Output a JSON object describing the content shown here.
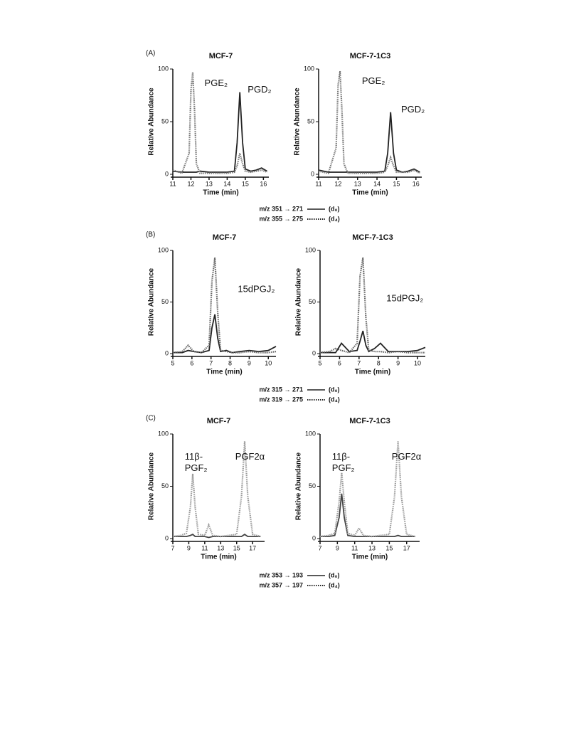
{
  "panels": [
    {
      "label": "(A)",
      "legend": [
        {
          "text": "m/z 351 → 271",
          "tag": "(d₀)",
          "style": "solid"
        },
        {
          "text": "m/z 355 → 275",
          "tag": "(d₄)",
          "style": "dotted"
        }
      ]
    },
    {
      "label": "(B)",
      "legend": [
        {
          "text": "m/z 315 → 271",
          "tag": "(d₀)",
          "style": "solid"
        },
        {
          "text": "m/z 319 → 275",
          "tag": "(d₄)",
          "style": "dotted"
        }
      ]
    },
    {
      "label": "(C)",
      "legend": [
        {
          "text": "m/z 353 → 193",
          "tag": "(d₀)",
          "style": "solid"
        },
        {
          "text": "m/z 357 → 197",
          "tag": "(d₄)",
          "style": "dotted"
        }
      ]
    }
  ],
  "chart_data": [
    {
      "type": "line",
      "title": "MCF-7",
      "x_label": "Time (min)",
      "y_label": "Relative Abundance",
      "xlim": [
        11,
        16.3
      ],
      "xticks": [
        11,
        12,
        13,
        14,
        15,
        16
      ],
      "ylim": [
        0,
        100
      ],
      "yticks": [
        0,
        50,
        100
      ],
      "annotations": [
        "PGE₂",
        "PGD₂"
      ],
      "x": [
        11,
        11.5,
        11.9,
        12.0,
        12.1,
        12.2,
        12.3,
        12.5,
        13,
        13.5,
        14,
        14.4,
        14.55,
        14.7,
        14.85,
        15,
        15.3,
        15.6,
        15.9,
        16.2
      ],
      "series": [
        {
          "style": "solid",
          "color": "#222222",
          "values": [
            3,
            2,
            2,
            2,
            2,
            2,
            2,
            3,
            2,
            2,
            2,
            3,
            30,
            78,
            30,
            5,
            3,
            4,
            6,
            3
          ]
        },
        {
          "style": "dotted",
          "color": "#777777",
          "values": [
            4,
            1,
            20,
            80,
            97,
            60,
            10,
            1,
            1,
            1,
            1,
            2,
            8,
            20,
            10,
            3,
            2,
            3,
            4,
            2
          ]
        }
      ]
    },
    {
      "type": "line",
      "title": "MCF-7-1C3",
      "x_label": "Time (min)",
      "y_label": "Relative Abundance",
      "xlim": [
        11,
        16.3
      ],
      "xticks": [
        11,
        12,
        13,
        14,
        15,
        16
      ],
      "ylim": [
        0,
        100
      ],
      "yticks": [
        0,
        50,
        100
      ],
      "annotations": [
        "PGE₂",
        "PGD₂"
      ],
      "x": [
        11,
        11.5,
        11.9,
        12.0,
        12.1,
        12.2,
        12.3,
        12.5,
        13,
        13.5,
        14,
        14.4,
        14.55,
        14.7,
        14.85,
        15,
        15.3,
        15.6,
        15.9,
        16.2
      ],
      "series": [
        {
          "style": "solid",
          "color": "#222222",
          "values": [
            4,
            2,
            2,
            2,
            2,
            2,
            2,
            2,
            2,
            2,
            2,
            3,
            20,
            59,
            20,
            4,
            2,
            3,
            5,
            2
          ]
        },
        {
          "style": "dotted",
          "color": "#777777",
          "values": [
            3,
            1,
            25,
            85,
            98,
            60,
            10,
            1,
            1,
            1,
            1,
            2,
            8,
            16,
            8,
            2,
            2,
            2,
            4,
            1
          ]
        }
      ]
    },
    {
      "type": "line",
      "title": "MCF-7",
      "x_label": "Time (min)",
      "y_label": "Relative Abundance",
      "xlim": [
        5,
        10.4
      ],
      "xticks": [
        5,
        6,
        7,
        8,
        9,
        10
      ],
      "ylim": [
        0,
        100
      ],
      "yticks": [
        0,
        50,
        100
      ],
      "annotations": [
        "15dPGJ₂"
      ],
      "x": [
        5,
        5.5,
        5.8,
        6.1,
        6.5,
        6.9,
        7.05,
        7.2,
        7.35,
        7.5,
        7.8,
        8.1,
        8.5,
        9,
        9.5,
        10,
        10.4
      ],
      "series": [
        {
          "style": "solid",
          "color": "#222222",
          "values": [
            1,
            1,
            3,
            2,
            1,
            3,
            25,
            38,
            15,
            2,
            3,
            1,
            2,
            3,
            2,
            3,
            7
          ]
        },
        {
          "style": "dotted",
          "color": "#666666",
          "values": [
            1,
            2,
            8,
            2,
            1,
            8,
            70,
            93,
            40,
            3,
            2,
            1,
            1,
            2,
            1,
            1,
            2
          ]
        }
      ]
    },
    {
      "type": "line",
      "title": "MCF-7-1C3",
      "x_label": "Time (min)",
      "y_label": "Relative Abundance",
      "xlim": [
        5,
        10.4
      ],
      "xticks": [
        5,
        6,
        7,
        8,
        9,
        10
      ],
      "ylim": [
        0,
        100
      ],
      "yticks": [
        0,
        50,
        100
      ],
      "annotations": [
        "15dPGJ₂"
      ],
      "x": [
        5,
        5.5,
        5.8,
        6.1,
        6.5,
        6.9,
        7.05,
        7.2,
        7.35,
        7.5,
        7.8,
        8.1,
        8.5,
        9,
        9.5,
        10,
        10.4
      ],
      "series": [
        {
          "style": "solid",
          "color": "#222222",
          "values": [
            1,
            1,
            1,
            10,
            2,
            3,
            12,
            22,
            8,
            2,
            5,
            10,
            2,
            2,
            2,
            3,
            6
          ]
        },
        {
          "style": "dotted",
          "color": "#666666",
          "values": [
            1,
            2,
            5,
            3,
            1,
            10,
            75,
            93,
            35,
            3,
            2,
            2,
            1,
            2,
            1,
            1,
            1
          ]
        }
      ]
    },
    {
      "type": "line",
      "title": "MCF-7",
      "x_label": "Time (min)",
      "y_label": "Relative Abundance",
      "xlim": [
        7,
        18.5
      ],
      "xticks": [
        7,
        9,
        11,
        13,
        15,
        17
      ],
      "ylim": [
        0,
        100
      ],
      "yticks": [
        0,
        50,
        100
      ],
      "annotations": [
        "11β-",
        "PGF₂",
        "PGF2α"
      ],
      "x": [
        7,
        8,
        8.7,
        9.2,
        9.5,
        9.8,
        10.2,
        11,
        11.5,
        12,
        13,
        14,
        15,
        15.6,
        16,
        16.4,
        17,
        18
      ],
      "series": [
        {
          "style": "solid",
          "color": "#444444",
          "values": [
            2,
            2,
            2,
            3,
            4,
            2,
            2,
            2,
            1,
            2,
            2,
            2,
            2,
            2,
            4,
            2,
            2,
            2
          ]
        },
        {
          "style": "dotted",
          "color": "#999999",
          "values": [
            2,
            3,
            5,
            30,
            62,
            30,
            4,
            3,
            13,
            3,
            2,
            3,
            4,
            40,
            93,
            40,
            4,
            2
          ]
        }
      ]
    },
    {
      "type": "line",
      "title": "MCF-7-1C3",
      "x_label": "Time (min)",
      "y_label": "Relative Abundance",
      "xlim": [
        7,
        18.5
      ],
      "xticks": [
        7,
        9,
        11,
        13,
        15,
        17
      ],
      "ylim": [
        0,
        100
      ],
      "yticks": [
        0,
        50,
        100
      ],
      "annotations": [
        "11β-",
        "PGF₂",
        "PGF2α"
      ],
      "x": [
        7,
        8,
        8.7,
        9.2,
        9.5,
        9.8,
        10.2,
        11,
        11.5,
        12,
        13,
        14,
        15,
        15.6,
        16,
        16.4,
        17,
        18
      ],
      "series": [
        {
          "style": "solid",
          "color": "#444444",
          "values": [
            2,
            2,
            3,
            20,
            43,
            20,
            3,
            2,
            2,
            2,
            2,
            2,
            2,
            2,
            3,
            2,
            2,
            2
          ]
        },
        {
          "style": "dotted",
          "color": "#999999",
          "values": [
            2,
            3,
            5,
            35,
            63,
            35,
            5,
            3,
            10,
            3,
            2,
            3,
            4,
            40,
            93,
            40,
            4,
            2
          ]
        }
      ]
    }
  ]
}
